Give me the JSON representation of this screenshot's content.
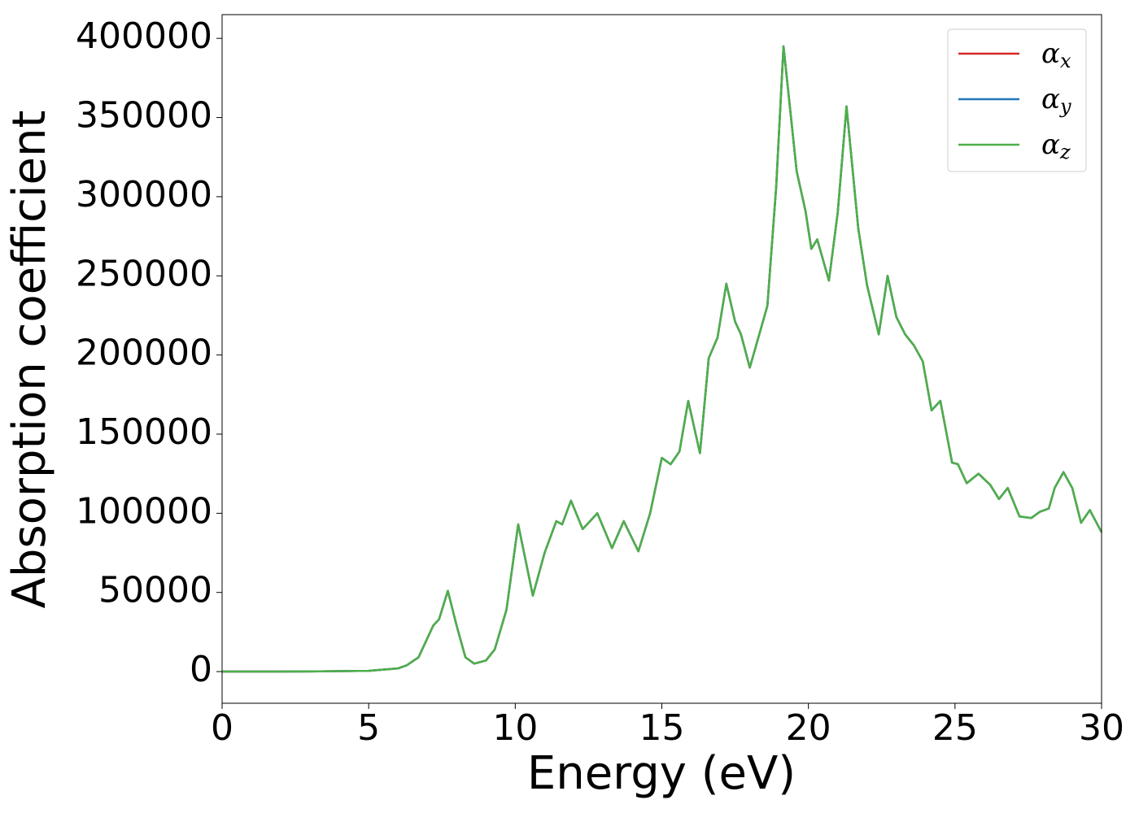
{
  "chart_data": {
    "type": "line",
    "x_label": "Energy (eV)",
    "y_label": "Absorption coefficient",
    "x": [
      0,
      1,
      2,
      3,
      4,
      5,
      6,
      6.3,
      6.7,
      7.0,
      7.2,
      7.4,
      7.7,
      8.0,
      8.3,
      8.6,
      9.0,
      9.3,
      9.7,
      10.1,
      10.6,
      11.0,
      11.4,
      11.6,
      11.9,
      12.3,
      12.8,
      13.3,
      13.7,
      14.2,
      14.6,
      15.0,
      15.3,
      15.6,
      15.9,
      16.3,
      16.6,
      16.9,
      17.2,
      17.5,
      17.7,
      18.0,
      18.6,
      18.9,
      19.15,
      19.6,
      19.9,
      20.1,
      20.3,
      20.7,
      21.0,
      21.3,
      21.7,
      22.0,
      22.4,
      22.7,
      23.0,
      23.3,
      23.6,
      23.9,
      24.2,
      24.5,
      24.9,
      25.1,
      25.4,
      25.8,
      26.2,
      26.5,
      26.8,
      27.2,
      27.6,
      27.9,
      28.2,
      28.4,
      28.7,
      29.0,
      29.3,
      29.6,
      30.0
    ],
    "series": [
      {
        "name": "αx",
        "color": "#d62728",
        "values": [
          0,
          0,
          0,
          100,
          300,
          500,
          2000,
          4000,
          9000,
          21000,
          29000,
          33000,
          51000,
          29000,
          9000,
          5000,
          7000,
          14000,
          39000,
          93000,
          48000,
          75000,
          95000,
          93000,
          108000,
          90000,
          100000,
          78000,
          95000,
          76000,
          100000,
          135000,
          131000,
          139000,
          171000,
          138000,
          198000,
          211000,
          245000,
          221000,
          213000,
          192000,
          231000,
          306000,
          395000,
          316000,
          291000,
          267000,
          273000,
          247000,
          290000,
          357000,
          280000,
          244000,
          213000,
          250000,
          224000,
          213000,
          206000,
          196000,
          165000,
          171000,
          132000,
          131000,
          119000,
          125000,
          118000,
          109000,
          116000,
          98000,
          97000,
          101000,
          103000,
          116000,
          126000,
          116000,
          94000,
          102000,
          88000
        ]
      },
      {
        "name": "αy",
        "color": "#1f77b4",
        "values": [
          0,
          0,
          0,
          100,
          300,
          500,
          2000,
          4000,
          9000,
          21000,
          29000,
          33000,
          51000,
          29000,
          9000,
          5000,
          7000,
          14000,
          39000,
          93000,
          48000,
          75000,
          95000,
          93000,
          108000,
          90000,
          100000,
          78000,
          95000,
          76000,
          100000,
          135000,
          131000,
          139000,
          171000,
          138000,
          198000,
          211000,
          245000,
          221000,
          213000,
          192000,
          231000,
          306000,
          395000,
          316000,
          291000,
          267000,
          273000,
          247000,
          290000,
          357000,
          280000,
          244000,
          213000,
          250000,
          224000,
          213000,
          206000,
          196000,
          165000,
          171000,
          132000,
          131000,
          119000,
          125000,
          118000,
          109000,
          116000,
          98000,
          97000,
          101000,
          103000,
          116000,
          126000,
          116000,
          94000,
          102000,
          88000
        ]
      },
      {
        "name": "αz",
        "color": "#4daf4a",
        "values": [
          0,
          0,
          0,
          100,
          300,
          500,
          2000,
          4000,
          9000,
          21000,
          29000,
          33000,
          51000,
          29000,
          9000,
          5000,
          7000,
          14000,
          39000,
          93000,
          48000,
          75000,
          95000,
          93000,
          108000,
          90000,
          100000,
          78000,
          95000,
          76000,
          100000,
          135000,
          131000,
          139000,
          171000,
          138000,
          198000,
          211000,
          245000,
          221000,
          213000,
          192000,
          231000,
          306000,
          395000,
          316000,
          291000,
          267000,
          273000,
          247000,
          290000,
          357000,
          280000,
          244000,
          213000,
          250000,
          224000,
          213000,
          206000,
          196000,
          165000,
          171000,
          132000,
          131000,
          119000,
          125000,
          118000,
          109000,
          116000,
          98000,
          97000,
          101000,
          103000,
          116000,
          126000,
          116000,
          94000,
          102000,
          88000
        ]
      }
    ],
    "xlim": [
      0,
      30
    ],
    "xticks": [
      0,
      5,
      10,
      15,
      20,
      25,
      30
    ],
    "ylim": [
      -20000,
      415000
    ],
    "yticks": [
      0,
      50000,
      100000,
      150000,
      200000,
      250000,
      300000,
      350000,
      400000
    ],
    "legend": "upper right"
  }
}
